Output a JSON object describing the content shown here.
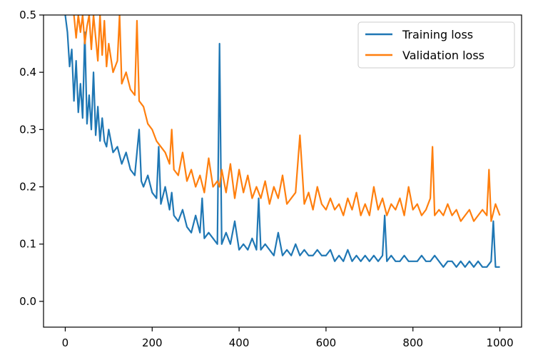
{
  "chart_data": {
    "type": "line",
    "title": "",
    "xlabel": "",
    "ylabel": "",
    "xlim": [
      -50,
      1050
    ],
    "ylim": [
      -0.045,
      0.5
    ],
    "x_ticks": [
      0,
      200,
      400,
      600,
      800,
      1000
    ],
    "x_tick_labels": [
      "0",
      "200",
      "400",
      "600",
      "800",
      "1000"
    ],
    "y_ticks": [
      0.0,
      0.1,
      0.2,
      0.3,
      0.4,
      0.5
    ],
    "y_tick_labels": [
      "0.0",
      "0.1",
      "0.2",
      "0.3",
      "0.4",
      "0.5"
    ],
    "grid": false,
    "legend_position": "top-right",
    "series": [
      {
        "name": "Training loss",
        "color": "#1f77b4",
        "x": [
          0,
          5,
          10,
          15,
          20,
          25,
          30,
          35,
          40,
          45,
          50,
          55,
          60,
          65,
          70,
          75,
          80,
          85,
          90,
          95,
          100,
          110,
          120,
          130,
          140,
          150,
          160,
          170,
          175,
          180,
          190,
          200,
          210,
          215,
          220,
          230,
          240,
          245,
          250,
          260,
          270,
          280,
          290,
          300,
          310,
          315,
          320,
          330,
          340,
          350,
          355,
          360,
          370,
          380,
          390,
          400,
          410,
          420,
          430,
          440,
          445,
          450,
          460,
          470,
          480,
          490,
          500,
          510,
          520,
          530,
          540,
          550,
          560,
          570,
          580,
          590,
          600,
          610,
          620,
          630,
          640,
          650,
          660,
          670,
          680,
          690,
          700,
          710,
          720,
          730,
          735,
          740,
          750,
          760,
          770,
          780,
          790,
          800,
          810,
          820,
          830,
          840,
          850,
          860,
          870,
          880,
          890,
          900,
          910,
          920,
          930,
          940,
          950,
          960,
          970,
          980,
          985,
          990,
          1000
        ],
        "values": [
          0.5,
          0.47,
          0.41,
          0.44,
          0.35,
          0.42,
          0.33,
          0.38,
          0.32,
          0.47,
          0.31,
          0.36,
          0.3,
          0.4,
          0.29,
          0.34,
          0.28,
          0.32,
          0.28,
          0.27,
          0.3,
          0.26,
          0.27,
          0.24,
          0.26,
          0.23,
          0.22,
          0.3,
          0.21,
          0.2,
          0.22,
          0.19,
          0.18,
          0.27,
          0.17,
          0.2,
          0.16,
          0.19,
          0.15,
          0.14,
          0.16,
          0.13,
          0.12,
          0.15,
          0.12,
          0.18,
          0.11,
          0.12,
          0.11,
          0.1,
          0.45,
          0.1,
          0.12,
          0.1,
          0.14,
          0.09,
          0.1,
          0.09,
          0.11,
          0.09,
          0.18,
          0.09,
          0.1,
          0.09,
          0.08,
          0.12,
          0.08,
          0.09,
          0.08,
          0.1,
          0.08,
          0.09,
          0.08,
          0.08,
          0.09,
          0.08,
          0.08,
          0.09,
          0.07,
          0.08,
          0.07,
          0.09,
          0.07,
          0.08,
          0.07,
          0.08,
          0.07,
          0.08,
          0.07,
          0.08,
          0.15,
          0.07,
          0.08,
          0.07,
          0.07,
          0.08,
          0.07,
          0.07,
          0.07,
          0.08,
          0.07,
          0.07,
          0.08,
          0.07,
          0.06,
          0.07,
          0.07,
          0.06,
          0.07,
          0.06,
          0.07,
          0.06,
          0.07,
          0.06,
          0.06,
          0.07,
          0.14,
          0.06,
          0.06
        ]
      },
      {
        "name": "Validation loss",
        "color": "#ff7f0e",
        "x": [
          20,
          25,
          30,
          35,
          40,
          45,
          50,
          55,
          60,
          65,
          70,
          75,
          80,
          85,
          90,
          95,
          100,
          110,
          120,
          125,
          130,
          140,
          150,
          160,
          165,
          170,
          180,
          190,
          200,
          210,
          220,
          230,
          240,
          245,
          250,
          260,
          270,
          280,
          290,
          300,
          310,
          320,
          330,
          340,
          350,
          355,
          360,
          370,
          380,
          390,
          400,
          410,
          420,
          430,
          440,
          450,
          460,
          470,
          480,
          490,
          500,
          510,
          520,
          530,
          540,
          550,
          560,
          570,
          580,
          590,
          600,
          610,
          620,
          630,
          640,
          650,
          660,
          670,
          680,
          690,
          700,
          710,
          720,
          730,
          740,
          750,
          760,
          770,
          780,
          790,
          800,
          810,
          820,
          830,
          840,
          845,
          850,
          860,
          870,
          880,
          890,
          900,
          910,
          920,
          930,
          940,
          950,
          960,
          970,
          975,
          980,
          990,
          1000
        ],
        "values": [
          0.5,
          0.46,
          0.5,
          0.47,
          0.5,
          0.45,
          0.48,
          0.5,
          0.44,
          0.5,
          0.46,
          0.42,
          0.5,
          0.43,
          0.49,
          0.41,
          0.45,
          0.4,
          0.42,
          0.5,
          0.38,
          0.4,
          0.37,
          0.36,
          0.49,
          0.35,
          0.34,
          0.31,
          0.3,
          0.28,
          0.27,
          0.26,
          0.24,
          0.3,
          0.23,
          0.22,
          0.26,
          0.21,
          0.23,
          0.2,
          0.22,
          0.19,
          0.25,
          0.2,
          0.21,
          0.2,
          0.23,
          0.19,
          0.24,
          0.18,
          0.23,
          0.19,
          0.22,
          0.18,
          0.2,
          0.18,
          0.21,
          0.17,
          0.2,
          0.18,
          0.22,
          0.17,
          0.18,
          0.19,
          0.29,
          0.17,
          0.19,
          0.16,
          0.2,
          0.17,
          0.16,
          0.18,
          0.16,
          0.17,
          0.15,
          0.18,
          0.16,
          0.19,
          0.15,
          0.17,
          0.15,
          0.2,
          0.16,
          0.18,
          0.15,
          0.17,
          0.16,
          0.18,
          0.15,
          0.2,
          0.16,
          0.17,
          0.15,
          0.16,
          0.18,
          0.27,
          0.15,
          0.16,
          0.15,
          0.17,
          0.15,
          0.16,
          0.14,
          0.15,
          0.16,
          0.14,
          0.15,
          0.16,
          0.15,
          0.23,
          0.14,
          0.17,
          0.15
        ]
      }
    ]
  }
}
